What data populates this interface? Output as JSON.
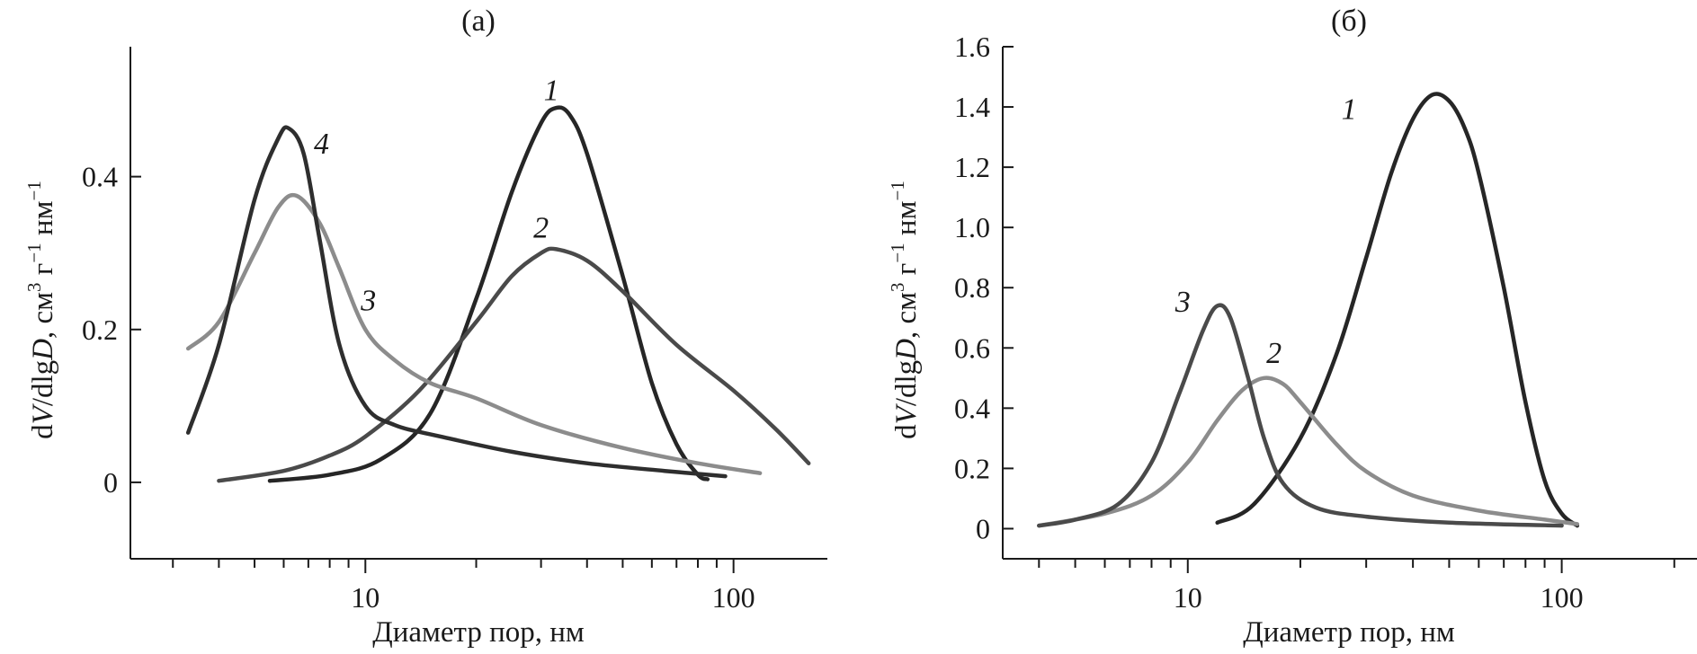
{
  "chart_data": [
    {
      "type": "line",
      "title": "(а)",
      "xlabel": "Диаметр пор, нм",
      "ylabel_parts": [
        "d",
        "V",
        "/dlg",
        "D",
        ", см",
        "3",
        " г",
        "−1",
        " нм",
        "−1"
      ],
      "xscale": "log",
      "xlim": [
        2.3,
        170
      ],
      "ylim": [
        -0.1,
        0.57
      ],
      "x_ticks": [
        10,
        100
      ],
      "x_tick_labels": [
        "10",
        "100"
      ],
      "y_ticks": [
        0,
        0.2,
        0.4
      ],
      "y_tick_labels": [
        "0",
        "0.2",
        "0.4"
      ],
      "series": [
        {
          "name": "1",
          "label": "1",
          "color": "#262626",
          "x": [
            5.5,
            8,
            11,
            15,
            20,
            25,
            30,
            33,
            36,
            40,
            50,
            60,
            70,
            80,
            85
          ],
          "y": [
            0.002,
            0.01,
            0.03,
            0.09,
            0.24,
            0.38,
            0.47,
            0.49,
            0.48,
            0.43,
            0.27,
            0.13,
            0.05,
            0.01,
            0.004
          ],
          "label_at": [
            32,
            0.5
          ]
        },
        {
          "name": "2",
          "label": "2",
          "color": "#4a4a4a",
          "x": [
            4,
            6,
            8,
            10,
            14,
            20,
            25,
            30,
            33,
            40,
            50,
            70,
            100,
            130,
            160
          ],
          "y": [
            0.002,
            0.015,
            0.035,
            0.06,
            0.12,
            0.21,
            0.27,
            0.3,
            0.305,
            0.29,
            0.25,
            0.18,
            0.12,
            0.07,
            0.025
          ],
          "label_at": [
            30,
            0.32
          ]
        },
        {
          "name": "3",
          "label": "3",
          "color": "#8c8c8c",
          "x": [
            3.3,
            4,
            5,
            5.8,
            6.5,
            7.5,
            8.5,
            10,
            12,
            15,
            20,
            30,
            50,
            80,
            118
          ],
          "y": [
            0.175,
            0.21,
            0.3,
            0.36,
            0.375,
            0.34,
            0.28,
            0.2,
            0.16,
            0.13,
            0.11,
            0.075,
            0.045,
            0.025,
            0.012
          ],
          "label_at": [
            10.2,
            0.225
          ]
        },
        {
          "name": "4",
          "label": "4",
          "color": "#2e2e2e",
          "x": [
            3.3,
            4,
            5,
            5.8,
            6.2,
            6.8,
            7.5,
            8.5,
            10,
            12,
            16,
            25,
            40,
            65,
            95
          ],
          "y": [
            0.065,
            0.18,
            0.37,
            0.45,
            0.463,
            0.43,
            0.32,
            0.18,
            0.1,
            0.075,
            0.06,
            0.04,
            0.025,
            0.015,
            0.008
          ],
          "label_at": [
            7.6,
            0.43
          ]
        }
      ]
    },
    {
      "type": "line",
      "title": "(б)",
      "xlabel": "Диаметр пор, нм",
      "ylabel_parts": [
        "d",
        "V",
        "/dlg",
        "D",
        ", см",
        "3",
        " г",
        "−1",
        " нм",
        "−1"
      ],
      "xscale": "log",
      "xlim": [
        3.2,
        230
      ],
      "ylim": [
        -0.1,
        1.6
      ],
      "x_ticks": [
        10,
        100
      ],
      "x_tick_labels": [
        "10",
        "100"
      ],
      "y_ticks": [
        0,
        0.2,
        0.4,
        0.6,
        0.8,
        1.0,
        1.2,
        1.4,
        1.6
      ],
      "y_tick_labels": [
        "0",
        "0.2",
        "0.4",
        "0.6",
        "0.8",
        "1.0",
        "1.2",
        "1.4",
        "1.6"
      ],
      "series": [
        {
          "name": "1",
          "label": "1",
          "color": "#262626",
          "x": [
            12,
            15,
            20,
            25,
            30,
            35,
            40,
            45,
            50,
            55,
            60,
            70,
            80,
            90,
            100,
            110
          ],
          "y": [
            0.02,
            0.08,
            0.3,
            0.58,
            0.9,
            1.18,
            1.36,
            1.44,
            1.42,
            1.33,
            1.18,
            0.8,
            0.42,
            0.16,
            0.05,
            0.01
          ],
          "label_at": [
            27,
            1.36
          ]
        },
        {
          "name": "2",
          "label": "2",
          "color": "#8c8c8c",
          "x": [
            4,
            6,
            8,
            10,
            12,
            14,
            16,
            18,
            20,
            25,
            30,
            40,
            60,
            90,
            110
          ],
          "y": [
            0.01,
            0.05,
            0.11,
            0.22,
            0.36,
            0.46,
            0.5,
            0.48,
            0.42,
            0.28,
            0.19,
            0.11,
            0.06,
            0.03,
            0.015
          ],
          "label_at": [
            17,
            0.55
          ]
        },
        {
          "name": "3",
          "label": "3",
          "color": "#4a4a4a",
          "x": [
            4,
            5,
            6.5,
            8,
            9.5,
            11,
            12,
            13,
            14.5,
            16,
            18,
            22,
            30,
            50,
            100
          ],
          "y": [
            0.01,
            0.03,
            0.08,
            0.22,
            0.45,
            0.66,
            0.74,
            0.7,
            0.5,
            0.3,
            0.15,
            0.07,
            0.04,
            0.02,
            0.01
          ],
          "label_at": [
            9.7,
            0.72
          ]
        }
      ]
    }
  ]
}
